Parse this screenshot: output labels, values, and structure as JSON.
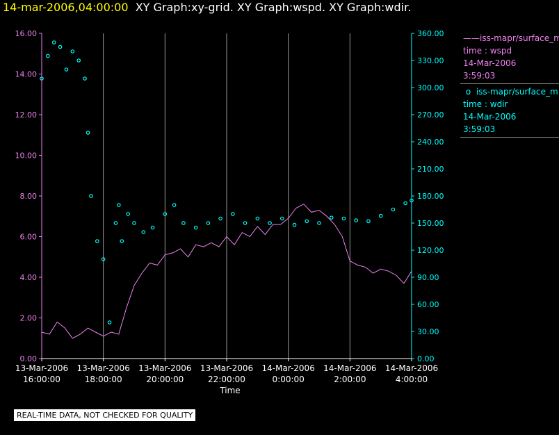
{
  "header": {
    "timestamp": "14-mar-2006,04:00:00",
    "graphs": "XY Graph:xy-grid.  XY Graph:wspd.  XY Graph:wdir."
  },
  "colors": {
    "background": "#000000",
    "wspd": "#ee82ee",
    "wdir": "#00ffff",
    "grid": "#999999",
    "axis_left": "#ee82ee",
    "axis_right": "#00ffff"
  },
  "legend": [
    {
      "symbol": "——",
      "source": "iss-mapr/surface_m",
      "field": "time : wspd",
      "date": "14-Mar-2006",
      "time": "3:59:03"
    },
    {
      "symbol": "o",
      "source": "iss-mapr/surface_m",
      "field": "time : wdir",
      "date": "14-Mar-2006",
      "time": "3:59:03"
    }
  ],
  "notice": "REAL-TIME DATA, NOT CHECKED FOR QUALITY",
  "chart_data": {
    "type": "line",
    "title": "XY Graph",
    "xlabel": "Time",
    "x_range_hours": [
      16.0,
      28.0
    ],
    "x_ticks": [
      {
        "hour": 16,
        "line1": "13-Mar-2006",
        "line2": "16:00:00"
      },
      {
        "hour": 18,
        "line1": "13-Mar-2006",
        "line2": "18:00:00"
      },
      {
        "hour": 20,
        "line1": "13-Mar-2006",
        "line2": "20:00:00"
      },
      {
        "hour": 22,
        "line1": "13-Mar-2006",
        "line2": "22:00:00"
      },
      {
        "hour": 24,
        "line1": "14-Mar-2006",
        "line2": "0:00:00"
      },
      {
        "hour": 26,
        "line1": "14-Mar-2006",
        "line2": "2:00:00"
      },
      {
        "hour": 28,
        "line1": "14-Mar-2006",
        "line2": "4:00:00"
      }
    ],
    "left_axis": {
      "ylim": [
        0,
        16
      ],
      "ticks": [
        "0.00",
        "2.00",
        "4.00",
        "6.00",
        "8.00",
        "10.00",
        "12.00",
        "14.00",
        "16.00"
      ]
    },
    "right_axis": {
      "ylim": [
        0,
        360
      ],
      "ticks": [
        "0.00",
        "30.00",
        "60.00",
        "90.00",
        "120.00",
        "150.00",
        "180.00",
        "210.00",
        "240.00",
        "270.00",
        "300.00",
        "330.00",
        "360.00"
      ]
    },
    "series": [
      {
        "name": "wspd",
        "axis": "left",
        "style": "line",
        "x": [
          16.0,
          16.25,
          16.5,
          16.75,
          17.0,
          17.25,
          17.5,
          17.75,
          18.0,
          18.25,
          18.5,
          18.75,
          19.0,
          19.25,
          19.5,
          19.75,
          20.0,
          20.25,
          20.5,
          20.75,
          21.0,
          21.25,
          21.5,
          21.75,
          22.0,
          22.25,
          22.5,
          22.75,
          23.0,
          23.25,
          23.5,
          23.75,
          24.0,
          24.25,
          24.5,
          24.75,
          25.0,
          25.25,
          25.5,
          25.75,
          26.0,
          26.25,
          26.5,
          26.75,
          27.0,
          27.25,
          27.5,
          27.75,
          28.0
        ],
        "values": [
          1.3,
          1.2,
          1.8,
          1.5,
          1.0,
          1.2,
          1.5,
          1.3,
          1.1,
          1.3,
          1.2,
          2.5,
          3.6,
          4.2,
          4.7,
          4.6,
          5.1,
          5.2,
          5.4,
          5.0,
          5.6,
          5.5,
          5.7,
          5.5,
          6.0,
          5.6,
          6.2,
          6.0,
          6.5,
          6.1,
          6.6,
          6.6,
          6.9,
          7.4,
          7.6,
          7.2,
          7.3,
          7.0,
          6.6,
          6.0,
          4.8,
          4.6,
          4.5,
          4.2,
          4.4,
          4.3,
          4.1,
          3.7,
          4.3
        ]
      },
      {
        "name": "wdir",
        "axis": "right",
        "style": "scatter",
        "x": [
          16.0,
          16.2,
          16.4,
          16.6,
          16.8,
          17.0,
          17.2,
          17.4,
          17.5,
          17.6,
          17.8,
          18.0,
          18.2,
          18.4,
          18.5,
          18.6,
          18.8,
          19.0,
          19.3,
          19.6,
          20.0,
          20.3,
          20.6,
          21.0,
          21.4,
          21.8,
          22.2,
          22.6,
          23.0,
          23.4,
          23.8,
          24.2,
          24.6,
          25.0,
          25.4,
          25.8,
          26.2,
          26.6,
          27.0,
          27.4,
          27.8,
          28.0
        ],
        "values": [
          310,
          335,
          350,
          345,
          320,
          340,
          330,
          310,
          250,
          180,
          130,
          110,
          40,
          150,
          170,
          130,
          160,
          150,
          140,
          145,
          160,
          170,
          150,
          145,
          150,
          155,
          160,
          150,
          155,
          150,
          155,
          148,
          152,
          150,
          156,
          155,
          153,
          152,
          158,
          165,
          172,
          175
        ]
      }
    ]
  }
}
